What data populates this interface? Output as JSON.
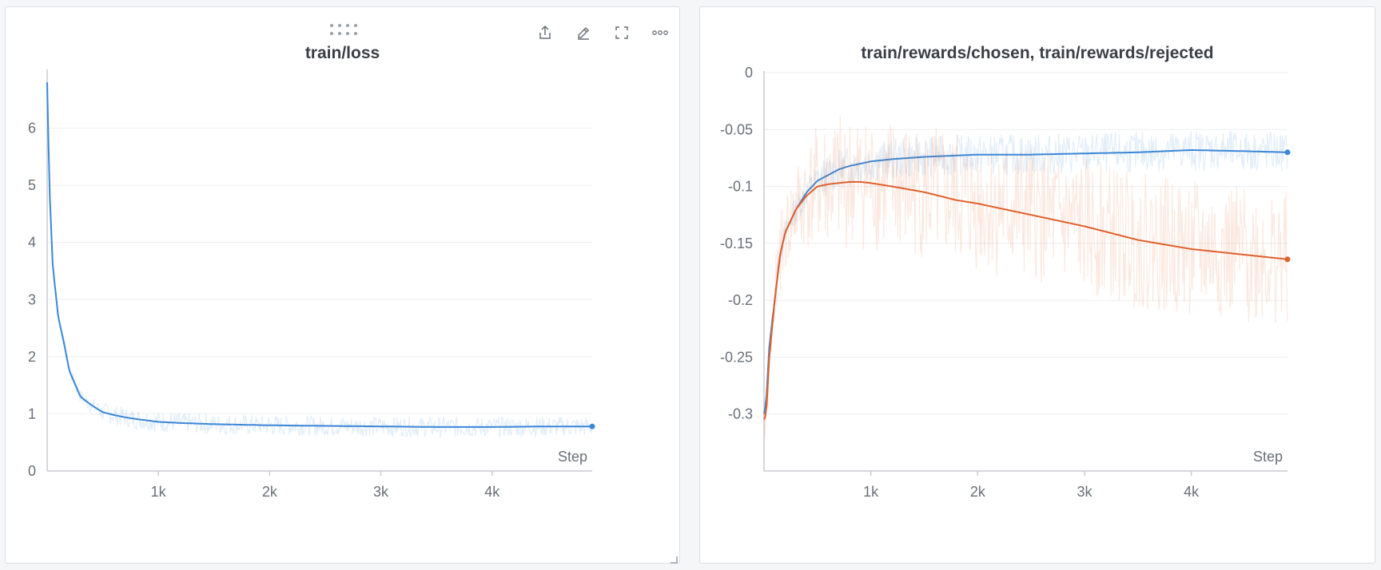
{
  "panels": {
    "loss": {
      "title": "train/loss",
      "toolbar": [
        "share-icon",
        "edit-icon",
        "fullscreen-icon",
        "more-icon"
      ]
    },
    "rewards": {
      "title": "train/rewards/chosen, train/rewards/rejected"
    }
  },
  "chart_data": [
    {
      "type": "line",
      "title": "train/loss",
      "xlabel": "Step",
      "ylabel": "",
      "xlim": [
        0,
        4900
      ],
      "ylim": [
        0,
        7
      ],
      "x_ticks": [
        1000,
        2000,
        3000,
        4000
      ],
      "x_tick_labels": [
        "1k",
        "2k",
        "3k",
        "4k"
      ],
      "y_ticks": [
        0,
        1,
        2,
        3,
        4,
        5,
        6
      ],
      "y_tick_labels": [
        "0",
        "1",
        "2",
        "3",
        "4",
        "5",
        "6"
      ],
      "grid": true,
      "series": [
        {
          "color": "#3b87d6",
          "x": [
            0,
            20,
            50,
            100,
            150,
            200,
            300,
            400,
            500,
            600,
            700,
            800,
            1000,
            1200,
            1500,
            2000,
            2500,
            3000,
            3500,
            4000,
            4500,
            4900
          ],
          "y": [
            6.8,
            5.0,
            3.6,
            2.7,
            2.25,
            1.75,
            1.3,
            1.15,
            1.03,
            0.98,
            0.94,
            0.91,
            0.86,
            0.84,
            0.82,
            0.8,
            0.79,
            0.78,
            0.77,
            0.77,
            0.78,
            0.78
          ]
        }
      ]
    },
    {
      "type": "line",
      "title": "train/rewards/chosen, train/rewards/rejected",
      "xlabel": "Step",
      "ylabel": "",
      "xlim": [
        0,
        4900
      ],
      "ylim": [
        -0.35,
        0
      ],
      "x_ticks": [
        1000,
        2000,
        3000,
        4000
      ],
      "x_tick_labels": [
        "1k",
        "2k",
        "3k",
        "4k"
      ],
      "y_ticks": [
        0,
        -0.05,
        -0.1,
        -0.15,
        -0.2,
        -0.25,
        -0.3
      ],
      "y_tick_labels": [
        "0",
        "-0.05",
        "-0.1",
        "-0.15",
        "-0.2",
        "-0.25",
        "-0.3"
      ],
      "grid": true,
      "series": [
        {
          "color": "#3b87d6",
          "x": [
            0,
            20,
            50,
            100,
            150,
            200,
            300,
            400,
            500,
            600,
            700,
            800,
            1000,
            1200,
            1500,
            2000,
            2500,
            3000,
            3500,
            4000,
            4500,
            4900
          ],
          "y": [
            -0.3,
            -0.29,
            -0.24,
            -0.2,
            -0.16,
            -0.14,
            -0.12,
            -0.105,
            -0.095,
            -0.09,
            -0.085,
            -0.082,
            -0.078,
            -0.076,
            -0.074,
            -0.072,
            -0.072,
            -0.071,
            -0.07,
            -0.068,
            -0.069,
            -0.07
          ]
        },
        {
          "color": "#e0602a",
          "x": [
            0,
            20,
            50,
            100,
            150,
            200,
            300,
            400,
            500,
            600,
            700,
            800,
            900,
            1000,
            1200,
            1500,
            1800,
            2000,
            2500,
            3000,
            3500,
            4000,
            4500,
            4900
          ],
          "y": [
            -0.305,
            -0.3,
            -0.25,
            -0.2,
            -0.16,
            -0.14,
            -0.12,
            -0.108,
            -0.1,
            -0.098,
            -0.097,
            -0.096,
            -0.096,
            -0.097,
            -0.1,
            -0.105,
            -0.112,
            -0.115,
            -0.125,
            -0.135,
            -0.147,
            -0.155,
            -0.16,
            -0.164
          ]
        }
      ]
    }
  ]
}
